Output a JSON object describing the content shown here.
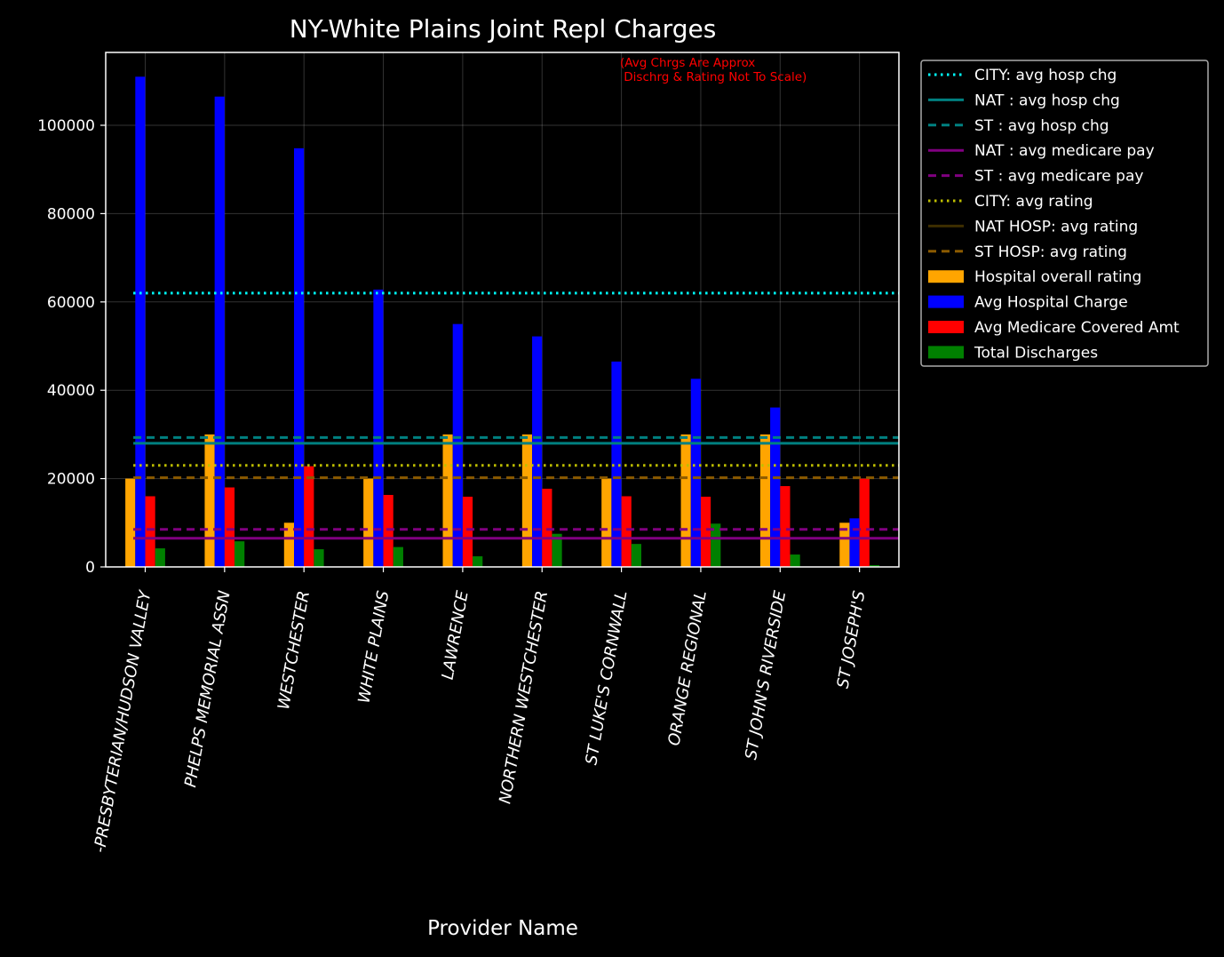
{
  "chart_data": {
    "type": "bar",
    "title": "NY-White Plains Joint Repl Charges",
    "xlabel": "Provider Name",
    "ylabel": "",
    "ylim": [
      0,
      116500
    ],
    "yticks": [
      0,
      20000,
      40000,
      60000,
      80000,
      100000
    ],
    "grid": true,
    "legend_position": "outside-right",
    "annotation": [
      "(Avg Chrgs Are Approx",
      " Dischrg & Rating Not To Scale)"
    ],
    "categories": [
      "-PRESBYTERIAN/HUDSON VALLEY",
      "PHELPS MEMORIAL  ASSN",
      "WESTCHESTER",
      "WHITE PLAINS",
      "LAWRENCE",
      "NORTHERN WESTCHESTER",
      "ST LUKE'S CORNWALL",
      "ORANGE REGIONAL",
      "ST JOHN'S RIVERSIDE",
      "ST JOSEPH'S"
    ],
    "series": [
      {
        "name": "Hospital overall rating",
        "color": "#ffa500",
        "values": [
          20000,
          30000,
          10000,
          20000,
          30000,
          30000,
          20000,
          30000,
          30000,
          10000
        ]
      },
      {
        "name": "Avg Hospital Charge",
        "color": "#0000ff",
        "values": [
          111000,
          106500,
          94800,
          62800,
          55000,
          52200,
          46500,
          42600,
          36100,
          11000
        ]
      },
      {
        "name": "Avg Medicare Covered Amt",
        "color": "#ff0000",
        "values": [
          16000,
          18000,
          22800,
          16300,
          15900,
          17700,
          16000,
          15900,
          18300,
          20000
        ]
      },
      {
        "name": "Total Discharges",
        "color": "#008000",
        "values": [
          4200,
          5800,
          4000,
          4500,
          2400,
          7500,
          5200,
          9800,
          2800,
          400
        ]
      }
    ],
    "reference_lines": [
      {
        "name": "CITY: avg hosp chg",
        "value": 62000,
        "color": "#00ffff",
        "style": "dotted"
      },
      {
        "name": "NAT : avg hosp chg",
        "value": 28000,
        "color": "#008080",
        "style": "solid"
      },
      {
        "name": "ST   : avg hosp chg",
        "value": 29300,
        "color": "#008080",
        "style": "dashed"
      },
      {
        "name": "NAT : avg medicare pay",
        "value": 6500,
        "color": "#800080",
        "style": "solid"
      },
      {
        "name": "ST   : avg medicare pay",
        "value": 8500,
        "color": "#800080",
        "style": "dashed"
      },
      {
        "name": "CITY: avg rating",
        "value": 23000,
        "color": "#bfbf00",
        "style": "dotted"
      },
      {
        "name": "NAT HOSP: avg rating",
        "value": null,
        "color": "#3d2e00",
        "style": "solid"
      },
      {
        "name": "ST  HOSP: avg rating",
        "value": 20200,
        "color": "#8b5a00",
        "style": "dashed"
      }
    ]
  }
}
